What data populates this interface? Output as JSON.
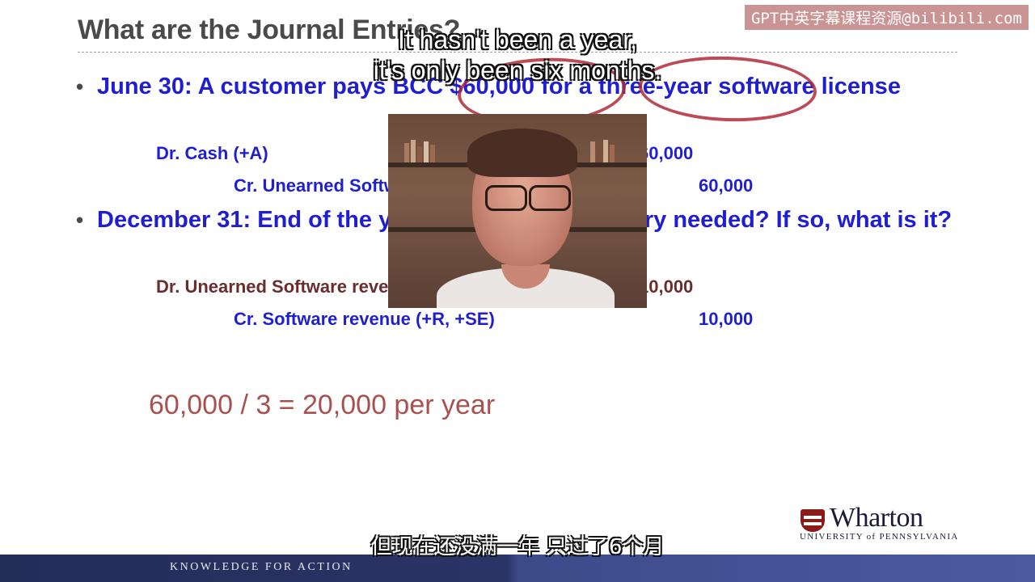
{
  "slide": {
    "title": "What are the Journal Entries?",
    "bullets": [
      {
        "text": "June 30: A customer pays BCC $60,000 for a three-year software license"
      },
      {
        "text": "December 31: End of the year. Is an adjusting entry needed? If so, what is it?"
      }
    ],
    "entries": {
      "dr1_label": "Dr. Cash (+A)",
      "dr1_amount": "60,000",
      "cr1_label": "Cr. Unearned Software revenue (+L)",
      "cr1_amount": "60,000",
      "dr2_label": "Dr. Unearned Software revenue (-L)",
      "dr2_amount": "10,000",
      "cr2_label": "Cr. Software revenue (+R, +SE)",
      "cr2_amount": "10,000"
    },
    "calculation": "60,000 / 3 = 20,000 per year"
  },
  "subtitles": {
    "english_line1": "It hasn't been a year,",
    "english_line2": "it's only been six months.",
    "chinese": "但现在还没满一年 只过了6个月"
  },
  "watermark": "GPT中英字幕课程资源@bilibili.com",
  "branding": {
    "logo_name": "Wharton",
    "logo_sub": "UNIVERSITY of PENNSYLVANIA",
    "footer": "KNOWLEDGE FOR ACTION"
  },
  "colors": {
    "bullet_blue": "#1f1fd1",
    "accent_red": "#b02a3a",
    "footer_navy": "#242c58"
  }
}
